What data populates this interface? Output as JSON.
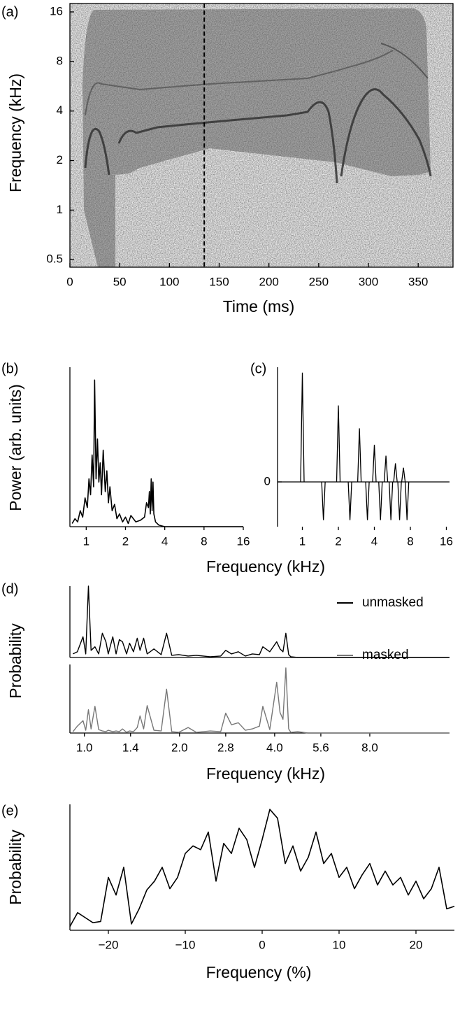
{
  "chart_data": [
    {
      "type": "spectrogram",
      "panel_label": "(a)",
      "xlabel": "Time (ms)",
      "ylabel": "Frequency (kHz)",
      "xlim": [
        0,
        385
      ],
      "ylim": [
        0.45,
        18
      ],
      "yscale": "log",
      "xticks": [
        0,
        50,
        100,
        150,
        200,
        250,
        300,
        350
      ],
      "yticks": [
        0.5,
        1,
        2,
        4,
        8,
        16
      ],
      "marker_x": 135,
      "marker_color": "#000000"
    },
    {
      "type": "line",
      "panel_label": "(b)",
      "xlabel": "Frequency (kHz)",
      "ylabel": "Power (arb. units)",
      "xscale": "log",
      "xlim": [
        0.75,
        16
      ],
      "ylim": [
        0,
        100
      ],
      "xticks": [
        1,
        2,
        4,
        8,
        16
      ],
      "color": "#000000",
      "x": [
        0.78,
        0.82,
        0.86,
        0.9,
        0.94,
        0.98,
        1.02,
        1.05,
        1.08,
        1.11,
        1.14,
        1.16,
        1.19,
        1.22,
        1.25,
        1.28,
        1.31,
        1.35,
        1.4,
        1.44,
        1.48,
        1.52,
        1.58,
        1.65,
        1.72,
        1.8,
        1.9,
        2.0,
        2.1,
        2.2,
        2.3,
        2.4,
        2.6,
        2.8,
        2.9,
        3.0,
        3.05,
        3.1,
        3.15,
        3.2,
        3.25,
        3.3,
        3.4,
        3.6,
        4,
        16
      ],
      "values": [
        2,
        5,
        3,
        10,
        6,
        18,
        12,
        30,
        20,
        45,
        25,
        92,
        30,
        55,
        28,
        40,
        20,
        48,
        22,
        35,
        15,
        25,
        10,
        14,
        5,
        8,
        3,
        6,
        2,
        7,
        5,
        3,
        4,
        6,
        15,
        12,
        22,
        8,
        30,
        10,
        28,
        8,
        3,
        1,
        0,
        0
      ]
    },
    {
      "type": "impulse",
      "panel_label": "(c)",
      "xscale": "log",
      "xlim": [
        0.62,
        17
      ],
      "ylim": [
        -0.41,
        1.05
      ],
      "xticks": [
        1,
        2,
        4,
        8,
        16
      ],
      "yticks": [
        0
      ],
      "color": "#000000",
      "x": [
        1,
        1.5,
        2,
        2.5,
        3,
        3.5,
        4,
        4.5,
        5,
        5.5,
        6,
        6.5,
        7,
        7.5
      ],
      "values": [
        1,
        -0.35,
        0.7,
        -0.35,
        0.49,
        -0.35,
        0.34,
        -0.35,
        0.24,
        -0.35,
        0.17,
        -0.35,
        0.13,
        -0.35
      ]
    },
    {
      "type": "line",
      "panel_label": "(d)",
      "xlabel": "Frequency (kHz)",
      "ylabel": "Probability",
      "xscale": "log",
      "xlim": [
        0.9,
        14.3
      ],
      "ylim": [
        0,
        100
      ],
      "subplots": true,
      "legend": "upper right",
      "xticks": [
        {
          "value": 1,
          "label": "1.0"
        },
        {
          "value": 1.4,
          "label": "1.4"
        },
        {
          "value": 2,
          "label": "2.0"
        },
        {
          "value": 2.8,
          "label": "2.8"
        },
        {
          "value": 4,
          "label": "4.0"
        },
        {
          "value": 5.6,
          "label": "5.6"
        },
        {
          "value": 8,
          "label": "8.0"
        }
      ],
      "x": [
        0.92,
        0.95,
        0.99,
        1.01,
        1.03,
        1.05,
        1.08,
        1.11,
        1.14,
        1.17,
        1.19,
        1.23,
        1.26,
        1.29,
        1.32,
        1.36,
        1.39,
        1.43,
        1.47,
        1.5,
        1.54,
        1.58,
        1.66,
        1.75,
        1.82,
        1.89,
        1.99,
        2.13,
        2.26,
        2.5,
        2.7,
        2.8,
        2.92,
        3.07,
        3.23,
        3.4,
        3.58,
        3.67,
        3.86,
        4.06,
        4.16,
        4.25,
        4.34,
        4.43,
        4.5,
        4.73,
        5.1,
        6.27,
        8.5,
        11.5,
        14.3
      ],
      "series": [
        {
          "name": "unmasked",
          "color": "#000000",
          "values": [
            5,
            8,
            29,
            5,
            100,
            10,
            15,
            5,
            34,
            22,
            5,
            29,
            5,
            25,
            22,
            5,
            20,
            8,
            27,
            10,
            27,
            5,
            12,
            4,
            34,
            3,
            4,
            2,
            3,
            1,
            2,
            10,
            5,
            8,
            2,
            5,
            4,
            15,
            8,
            22,
            12,
            8,
            34,
            4,
            1,
            0,
            0,
            0,
            0,
            0,
            0
          ]
        },
        {
          "name": "masked",
          "color": "#777777",
          "values": [
            2,
            10,
            18,
            4,
            34,
            6,
            39,
            5,
            3,
            2,
            4,
            2,
            3,
            2,
            6,
            1,
            3,
            2,
            8,
            25,
            6,
            40,
            4,
            3,
            64,
            2,
            1,
            8,
            1,
            3,
            2,
            29,
            12,
            15,
            4,
            6,
            10,
            39,
            5,
            74,
            30,
            20,
            95,
            6,
            1,
            2,
            0,
            0,
            0,
            0,
            0
          ]
        }
      ]
    },
    {
      "type": "line",
      "panel_label": "(e)",
      "xlabel": "Frequency (%)",
      "ylabel": "Probability",
      "xlim": [
        -25,
        25
      ],
      "ylim": [
        0,
        100
      ],
      "color": "#000000",
      "xticks": [
        {
          "value": -20,
          "label": "−20"
        },
        {
          "value": -10,
          "label": "−10"
        },
        0,
        10,
        20
      ],
      "x": [
        -25,
        -24,
        -23,
        -22,
        -21,
        -20,
        -19,
        -18,
        -17,
        -16,
        -15,
        -14,
        -13,
        -12,
        -11,
        -10,
        -9,
        -8,
        -7,
        -6,
        -5,
        -4,
        -3,
        -2,
        -1,
        0,
        1,
        2,
        3,
        4,
        5,
        6,
        7,
        8,
        9,
        10,
        11,
        12,
        13,
        14,
        15,
        16,
        17,
        18,
        19,
        20,
        21,
        22,
        23,
        24,
        25
      ],
      "values": [
        3,
        14,
        10,
        6,
        7,
        42,
        28,
        50,
        5,
        17,
        32,
        39,
        50,
        33,
        42,
        61,
        67,
        64,
        78,
        39,
        69,
        61,
        81,
        72,
        50,
        72,
        96,
        89,
        53,
        67,
        47,
        58,
        78,
        53,
        61,
        42,
        50,
        33,
        44,
        53,
        36,
        47,
        36,
        42,
        28,
        39,
        25,
        33,
        50,
        17,
        19
      ]
    }
  ]
}
